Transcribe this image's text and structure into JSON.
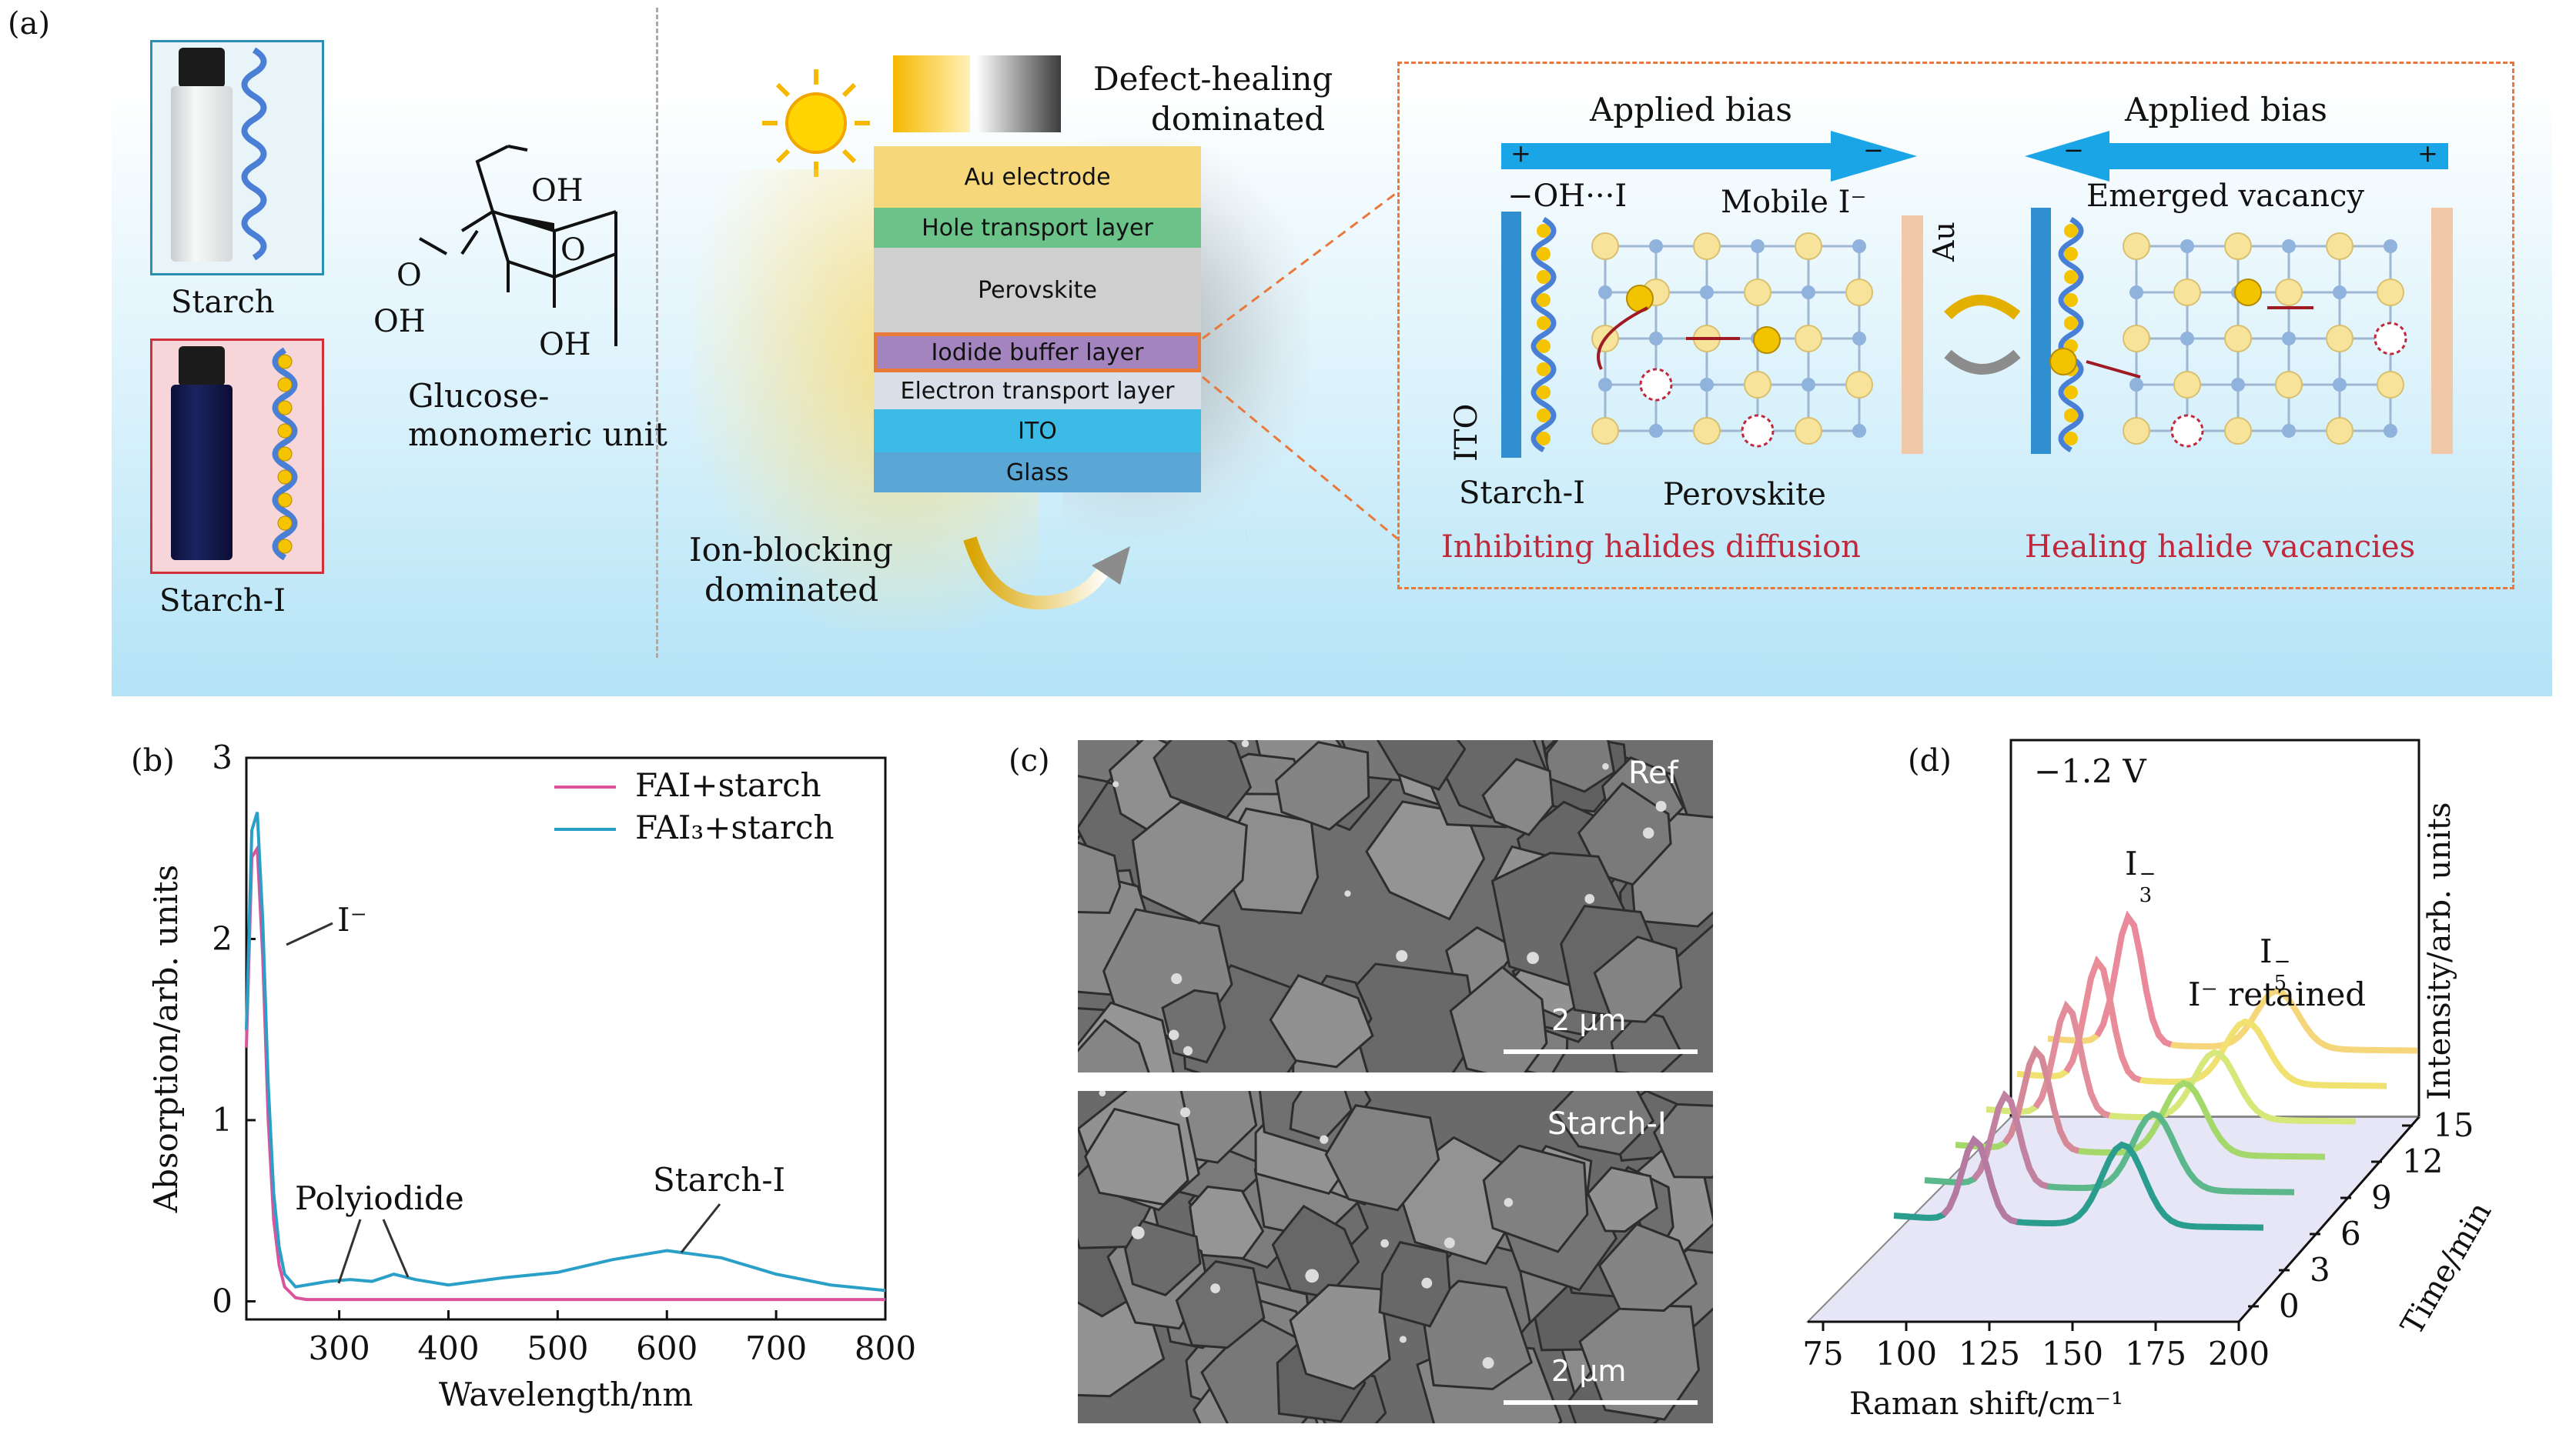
{
  "panel_a": {
    "label": "(a)",
    "starch_label": "Starch",
    "starch_i_label": "Starch-I",
    "glucose_label_1": "Glucose-",
    "glucose_label_2": "monomeric unit",
    "oh1": "OH",
    "oh2": "OH",
    "oh3": "OH",
    "o_ring": "O",
    "o_link": "O",
    "defect_label_1": "Defect-healing",
    "defect_label_2": "dominated",
    "ion_label_1": "Ion-blocking",
    "ion_label_2": "dominated",
    "layers": [
      "Au electrode",
      "Hole transport layer",
      "Perovskite",
      "Iodide buffer layer",
      "Electron transport layer",
      "ITO",
      "Glass"
    ],
    "applied_bias": "Applied bias",
    "plus": "+",
    "minus": "−",
    "oh_i": "−OH···I",
    "mobile_i": "Mobile I⁻",
    "au": "Au",
    "ito": "ITO",
    "starch_i_sub": "Starch-I",
    "perovskite": "Perovskite",
    "emerged_vacancy": "Emerged vacancy",
    "inhibiting": "Inhibiting halides diffusion",
    "healing": "Healing halide vacancies",
    "colors": {
      "bg_top": "#ffffff",
      "bg_bottom": "#b8e6f7",
      "red_text": "#c0283c",
      "orange_dash": "#e8793a",
      "arrow_blue": "#1aa6e6"
    }
  },
  "panel_b": {
    "label": "(b)",
    "annotations": {
      "i_minus": "I⁻",
      "polyiodide": "Polyiodide",
      "starch_i": "Starch-I"
    }
  },
  "panel_c": {
    "label": "(c)",
    "ref_label": "Ref",
    "starch_label": "Starch-I",
    "scale_top": "2 μm",
    "scale_bottom": "2 μm"
  },
  "panel_d": {
    "label": "(d)",
    "voltage": "−1.2 V",
    "i3": "I",
    "i3_sup": "−",
    "i3_sub": "3",
    "i5": "I",
    "i5_sup": "−",
    "i5_sub": "5",
    "i_retained": "I⁻ retained",
    "ylabel": "Intensity/arb. units",
    "xlabel": "Raman shift/cm⁻¹",
    "tlabel": "Time/min",
    "x_ticks": [
      "75",
      "100",
      "125",
      "150",
      "175",
      "200"
    ],
    "t_ticks": [
      "0",
      "3",
      "6",
      "9",
      "12",
      "15"
    ]
  },
  "chart_data": [
    {
      "type": "line",
      "panel": "(b)",
      "xlabel": "Wavelength/nm",
      "ylabel": "Absorption/arb. units",
      "xlim": [
        215,
        800
      ],
      "ylim": [
        -0.1,
        3
      ],
      "x_ticks": [
        300,
        400,
        500,
        600,
        700,
        800
      ],
      "y_ticks": [
        0,
        1,
        2,
        3
      ],
      "legend_position": "top-right",
      "series": [
        {
          "name": "FAI+starch",
          "color": "#d9549c",
          "x": [
            215,
            220,
            225,
            230,
            235,
            240,
            245,
            250,
            260,
            270,
            300,
            400,
            500,
            600,
            700,
            800
          ],
          "y": [
            1.4,
            2.45,
            2.5,
            1.9,
            1.0,
            0.45,
            0.2,
            0.08,
            0.02,
            0.01,
            0.01,
            0.01,
            0.01,
            0.01,
            0.01,
            0.01
          ]
        },
        {
          "name": "FAI₃+starch",
          "color": "#2aa0c8",
          "x": [
            215,
            220,
            225,
            230,
            235,
            240,
            245,
            250,
            260,
            270,
            290,
            310,
            330,
            350,
            370,
            400,
            450,
            500,
            550,
            600,
            650,
            700,
            750,
            800
          ],
          "y": [
            1.5,
            2.6,
            2.7,
            2.1,
            1.2,
            0.6,
            0.3,
            0.15,
            0.08,
            0.09,
            0.11,
            0.12,
            0.11,
            0.15,
            0.12,
            0.09,
            0.13,
            0.16,
            0.23,
            0.28,
            0.24,
            0.15,
            0.09,
            0.06
          ]
        }
      ]
    },
    {
      "type": "line",
      "panel": "(d)",
      "title": "−1.2 V",
      "xlabel": "Raman shift/cm⁻¹",
      "ylabel": "Intensity/arb. units",
      "zlabel": "Time/min",
      "xlim": [
        75,
        200
      ],
      "x_ticks": [
        75,
        100,
        125,
        150,
        175,
        200
      ],
      "z_ticks": [
        0,
        3,
        6,
        9,
        12,
        15
      ],
      "series_times": [
        0,
        3,
        6,
        9,
        12,
        15
      ],
      "peaks": {
        "I3_minus_cm1": 110,
        "I5_minus_cm1": 165
      }
    }
  ]
}
